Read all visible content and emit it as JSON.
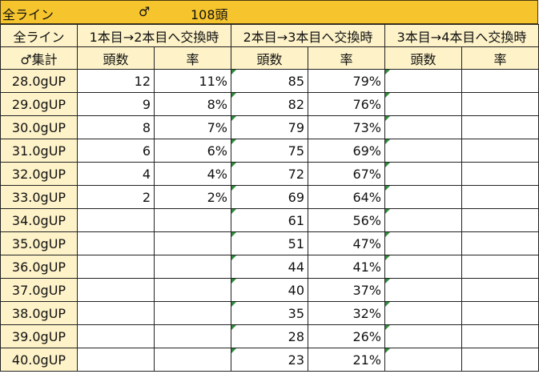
{
  "title": {
    "line": "全ライン",
    "sex_symbol": "♂",
    "count": "108頭"
  },
  "header": {
    "corner_top": "全ライン",
    "corner_bottom": "♂集計",
    "groups": [
      "1本目→2本目へ交換時",
      "2本目→3本目へ交換時",
      "3本目→4本目へ交換時"
    ],
    "sub": [
      "頭数",
      "率",
      "頭数",
      "率",
      "頭数",
      "率"
    ]
  },
  "rows": [
    {
      "label": "28.0gUP",
      "cells": [
        "12",
        "11%",
        "85",
        "79%",
        "",
        ""
      ]
    },
    {
      "label": "29.0gUP",
      "cells": [
        "9",
        "8%",
        "82",
        "76%",
        "",
        ""
      ]
    },
    {
      "label": "30.0gUP",
      "cells": [
        "8",
        "7%",
        "79",
        "73%",
        "",
        ""
      ]
    },
    {
      "label": "31.0gUP",
      "cells": [
        "6",
        "6%",
        "75",
        "69%",
        "",
        ""
      ]
    },
    {
      "label": "32.0gUP",
      "cells": [
        "4",
        "4%",
        "72",
        "67%",
        "",
        ""
      ]
    },
    {
      "label": "33.0gUP",
      "cells": [
        "2",
        "2%",
        "69",
        "64%",
        "",
        ""
      ]
    },
    {
      "label": "34.0gUP",
      "cells": [
        "",
        "",
        "61",
        "56%",
        "",
        ""
      ]
    },
    {
      "label": "35.0gUP",
      "cells": [
        "",
        "",
        "51",
        "47%",
        "",
        ""
      ]
    },
    {
      "label": "36.0gUP",
      "cells": [
        "",
        "",
        "44",
        "41%",
        "",
        ""
      ]
    },
    {
      "label": "37.0gUP",
      "cells": [
        "",
        "",
        "40",
        "37%",
        "",
        ""
      ]
    },
    {
      "label": "38.0gUP",
      "cells": [
        "",
        "",
        "35",
        "32%",
        "",
        ""
      ]
    },
    {
      "label": "39.0gUP",
      "cells": [
        "",
        "",
        "28",
        "26%",
        "",
        ""
      ]
    },
    {
      "label": "40.0gUP",
      "cells": [
        "",
        "",
        "23",
        "21%",
        "",
        ""
      ]
    }
  ],
  "colors": {
    "title_bg": "#f6c52e",
    "header_bg": "#fdf2c8",
    "flag": "#2e8b3c"
  }
}
